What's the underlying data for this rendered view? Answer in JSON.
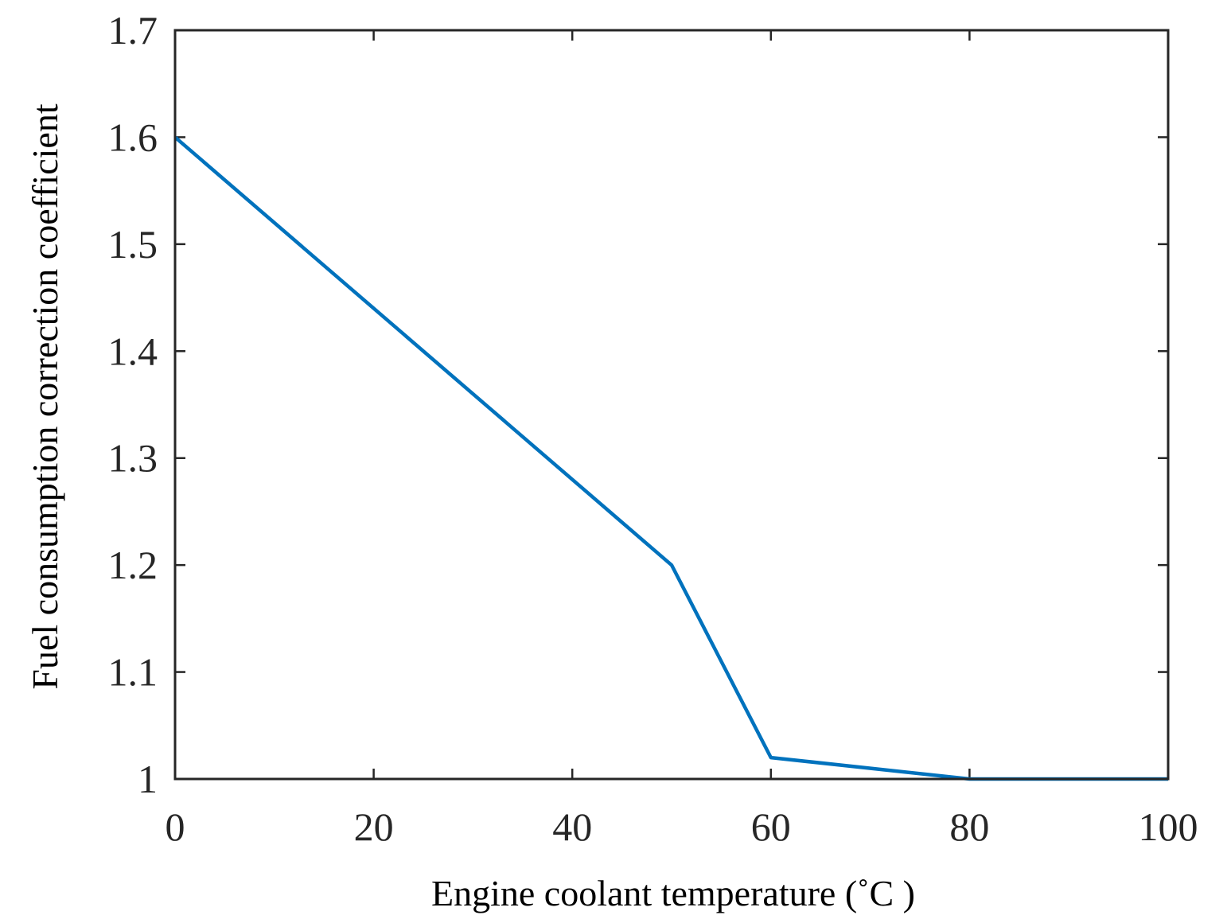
{
  "chart_data": {
    "type": "line",
    "title": "",
    "xlabel": "Engine coolant temperature (˚C )",
    "ylabel": "Fuel consumption correction coefficient",
    "xlim": [
      0,
      100
    ],
    "ylim": [
      1,
      1.7
    ],
    "x_ticks": [
      0,
      20,
      40,
      60,
      80,
      100
    ],
    "x_tick_labels": [
      "0",
      "20",
      "40",
      "60",
      "80",
      "100"
    ],
    "y_ticks": [
      1,
      1.1,
      1.2,
      1.3,
      1.4,
      1.5,
      1.6,
      1.7
    ],
    "y_tick_labels": [
      "1",
      "1.1",
      "1.2",
      "1.3",
      "1.4",
      "1.5",
      "1.6",
      "1.7"
    ],
    "grid": false,
    "legend": "none",
    "series": [
      {
        "color": "#0072BD",
        "x": [
          0,
          50,
          60,
          80,
          100
        ],
        "y": [
          1.6,
          1.2,
          1.02,
          1.0,
          1.0
        ]
      }
    ]
  }
}
